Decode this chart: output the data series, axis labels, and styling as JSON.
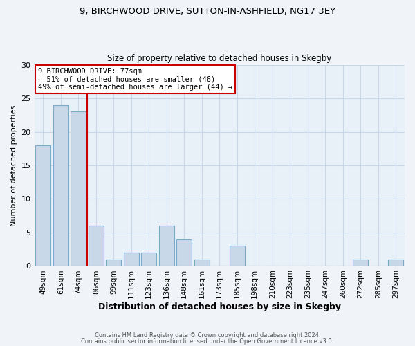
{
  "title_line1": "9, BIRCHWOOD DRIVE, SUTTON-IN-ASHFIELD, NG17 3EY",
  "title_line2": "Size of property relative to detached houses in Skegby",
  "xlabel": "Distribution of detached houses by size in Skegby",
  "ylabel": "Number of detached properties",
  "categories": [
    "49sqm",
    "61sqm",
    "74sqm",
    "86sqm",
    "99sqm",
    "111sqm",
    "123sqm",
    "136sqm",
    "148sqm",
    "161sqm",
    "173sqm",
    "185sqm",
    "198sqm",
    "210sqm",
    "223sqm",
    "235sqm",
    "247sqm",
    "260sqm",
    "272sqm",
    "285sqm",
    "297sqm"
  ],
  "bar_heights": [
    18,
    24,
    23,
    6,
    1,
    2,
    2,
    6,
    4,
    1,
    0,
    3,
    0,
    0,
    0,
    0,
    0,
    0,
    1,
    0,
    1
  ],
  "bar_color": "#c8d8e8",
  "bar_edge_color": "#7aaac8",
  "bar_width": 0.85,
  "ylim": [
    0,
    30
  ],
  "yticks": [
    0,
    5,
    10,
    15,
    20,
    25,
    30
  ],
  "red_line_x": 2.5,
  "annotation_title": "9 BIRCHWOOD DRIVE: 77sqm",
  "annotation_line1": "← 51% of detached houses are smaller (46)",
  "annotation_line2": "49% of semi-detached houses are larger (44) →",
  "annotation_box_color": "#ffffff",
  "annotation_box_edge_color": "#cc0000",
  "red_line_color": "#cc0000",
  "grid_color": "#c8d8e8",
  "bg_color": "#e8f0f8",
  "fig_bg_color": "#f0f4f8",
  "footer_line1": "Contains HM Land Registry data © Crown copyright and database right 2024.",
  "footer_line2": "Contains public sector information licensed under the Open Government Licence v3.0."
}
